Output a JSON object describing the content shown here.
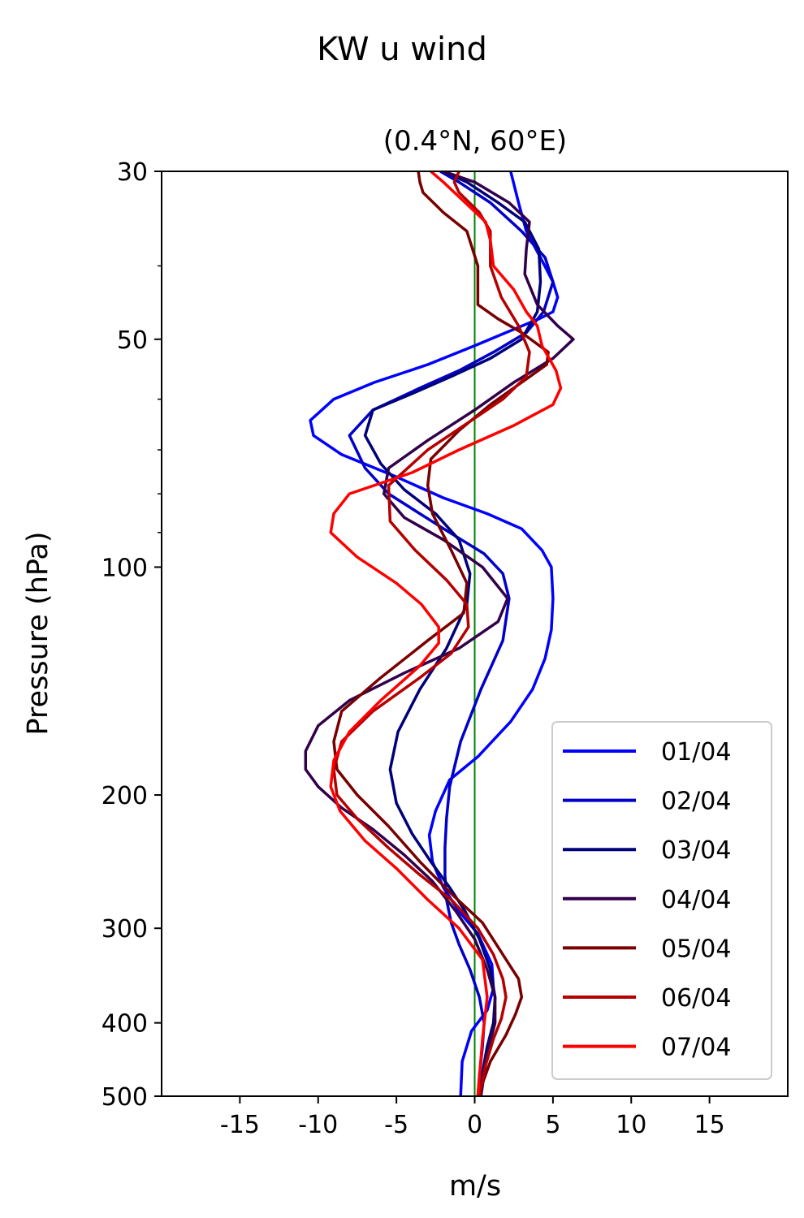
{
  "chart_data": {
    "type": "line",
    "title": "KW u wind",
    "subtitle": "(0.4°N, 60°E)",
    "xlabel": "m/s",
    "ylabel": "Pressure (hPa)",
    "xlim": [
      -20,
      20
    ],
    "ylim": [
      500,
      30
    ],
    "y_scale": "log",
    "x_ticks": [
      -15,
      -10,
      -5,
      0,
      5,
      10,
      15
    ],
    "y_ticks": [
      30,
      50,
      100,
      200,
      300,
      400,
      500
    ],
    "grid": false,
    "legend_position": "lower-right",
    "reference_line": {
      "x": 0,
      "color": "#008000"
    },
    "series": [
      {
        "name": "01/04",
        "color": "#0000ff",
        "x": [
          2.3,
          2.8,
          3.3,
          4.2,
          5.0,
          5.3,
          5.0,
          4.1,
          2.0,
          0.0,
          -3.0,
          -6.4,
          -9.0,
          -10.5,
          -10.3,
          -8.5,
          -5.0,
          -2.0,
          0.8,
          3.0,
          4.3,
          4.9,
          5.0,
          4.9,
          4.5,
          3.7,
          2.3,
          0.2,
          -1.6,
          -2.5,
          -2.9,
          -2.7,
          -2.0,
          -1.0,
          0.2,
          1.1,
          1.2,
          0.8,
          -0.2,
          -0.8,
          -0.9
        ],
        "y": [
          30,
          33,
          36,
          39,
          42,
          44,
          46,
          47,
          49,
          51,
          54,
          57,
          60,
          64,
          67,
          71,
          76,
          81,
          85,
          89,
          95,
          100,
          110,
          121,
          132,
          145,
          160,
          178,
          191,
          210,
          226,
          245,
          265,
          285,
          305,
          335,
          360,
          385,
          410,
          450,
          500
        ]
      },
      {
        "name": "02/04",
        "color": "#0000c8",
        "x": [
          -2.2,
          -1.0,
          1.0,
          3.0,
          4.5,
          5.0,
          4.4,
          3.3,
          1.2,
          -1.0,
          -3.5,
          -6.5,
          -8.0,
          -7.0,
          -5.5,
          -3.5,
          -1.6,
          0.6,
          1.8,
          2.2,
          1.8,
          0.4,
          -0.9,
          -1.6,
          -1.8,
          -1.9,
          -1.9,
          -1.8,
          -1.5,
          -1.0,
          -0.3,
          0.3,
          0.6,
          0.5,
          0.3,
          0.2
        ],
        "y": [
          30,
          31,
          33,
          36,
          39,
          42,
          46,
          49,
          52,
          55,
          58,
          62,
          67,
          74,
          80,
          85,
          90,
          96,
          102,
          110,
          125,
          145,
          170,
          195,
          215,
          235,
          255,
          275,
          295,
          315,
          340,
          370,
          400,
          430,
          470,
          500
        ]
      },
      {
        "name": "03/04",
        "color": "#000078",
        "x": [
          -2.0,
          -0.5,
          1.5,
          3.2,
          4.1,
          4.2,
          4.0,
          3.0,
          1.0,
          -1.5,
          -4.0,
          -6.5,
          -7.0,
          -6.0,
          -4.5,
          -2.5,
          -1.0,
          -0.3,
          -0.5,
          -1.8,
          -3.5,
          -4.9,
          -5.4,
          -5.0,
          -4.0,
          -2.8,
          -1.6,
          -0.6,
          0.3,
          1.0,
          1.3,
          1.2,
          0.8,
          0.5,
          0.3
        ],
        "y": [
          30,
          31,
          33,
          35,
          38,
          42,
          46,
          50,
          53,
          56,
          59,
          62,
          67,
          73,
          79,
          85,
          92,
          102,
          112,
          128,
          145,
          165,
          185,
          205,
          225,
          245,
          265,
          285,
          310,
          340,
          370,
          400,
          430,
          465,
          500
        ]
      },
      {
        "name": "04/04",
        "color": "#32004b",
        "x": [
          -2.0,
          0.0,
          2.2,
          3.5,
          3.3,
          3.2,
          4.0,
          5.3,
          6.3,
          5.0,
          2.5,
          0.0,
          -3.0,
          -5.5,
          -5.8,
          -4.5,
          -2.0,
          0.5,
          2.1,
          1.5,
          -1.0,
          -4.5,
          -8.0,
          -10.0,
          -10.8,
          -10.8,
          -10.0,
          -8.5,
          -6.5,
          -4.5,
          -2.7,
          -1.2,
          0.0,
          0.8,
          1.3,
          1.3,
          0.8,
          0.4
        ],
        "y": [
          30,
          31,
          33,
          35,
          38,
          41,
          45,
          48,
          50,
          53,
          57,
          62,
          68,
          74,
          80,
          86,
          92,
          100,
          110,
          118,
          128,
          138,
          150,
          162,
          175,
          185,
          195,
          208,
          222,
          240,
          260,
          285,
          310,
          340,
          370,
          400,
          440,
          500
        ]
      },
      {
        "name": "05/04",
        "color": "#780000",
        "x": [
          -3.6,
          -3.5,
          -3.3,
          -2.0,
          -0.5,
          0.2,
          0.2,
          0.2,
          1.5,
          3.0,
          4.7,
          4.6,
          3.0,
          1.0,
          -1.0,
          -2.8,
          -3.0,
          -2.7,
          -1.5,
          -0.5,
          -0.7,
          -3.0,
          -6.0,
          -8.5,
          -9.0,
          -8.8,
          -7.5,
          -5.5,
          -3.5,
          -1.5,
          0.5,
          1.8,
          2.8,
          3.0,
          2.6,
          2.0,
          1.0,
          0.2
        ],
        "y": [
          30,
          31,
          32,
          34,
          36,
          40,
          43,
          45,
          47,
          49,
          52,
          54,
          57,
          61,
          66,
          72,
          78,
          85,
          95,
          105,
          115,
          125,
          140,
          155,
          170,
          185,
          200,
          220,
          245,
          270,
          295,
          325,
          350,
          370,
          390,
          415,
          450,
          500
        ]
      },
      {
        "name": "06/04",
        "color": "#b40000",
        "x": [
          -1.0,
          -1.3,
          -1.0,
          0.3,
          1.0,
          1.0,
          1.7,
          2.8,
          3.5,
          3.3,
          1.8,
          -0.2,
          -3.0,
          -5.5,
          -5.4,
          -3.8,
          -1.8,
          -0.5,
          -0.4,
          -1.5,
          -3.5,
          -6.5,
          -8.5,
          -9.0,
          -8.8,
          -7.5,
          -5.5,
          -3.5,
          -1.5,
          0.2,
          1.2,
          1.8,
          2.0,
          1.7,
          1.2,
          0.7,
          0.3
        ],
        "y": [
          30,
          31,
          32,
          34,
          36,
          40,
          44,
          48,
          52,
          56,
          60,
          64,
          70,
          78,
          87,
          95,
          104,
          112,
          120,
          130,
          140,
          155,
          170,
          185,
          200,
          215,
          235,
          255,
          275,
          300,
          325,
          350,
          370,
          395,
          420,
          455,
          500
        ]
      },
      {
        "name": "07/04",
        "color": "#ff0000",
        "x": [
          -2.8,
          -2.0,
          -0.6,
          0.7,
          1.0,
          1.2,
          2.5,
          3.3,
          4.0,
          4.3,
          5.2,
          5.5,
          5.0,
          2.5,
          -1.0,
          -4.0,
          -8.0,
          -9.0,
          -9.2,
          -7.5,
          -5.0,
          -3.4,
          -2.3,
          -2.3,
          -3.5,
          -6.0,
          -8.0,
          -9.0,
          -9.2,
          -8.6,
          -7.0,
          -5.0,
          -3.0,
          -1.0,
          0.5,
          0.8,
          0.5,
          0.2
        ],
        "y": [
          30,
          31,
          33,
          35,
          37,
          40,
          43,
          46,
          48,
          51,
          55,
          58,
          61,
          65,
          70,
          75,
          80,
          85,
          90,
          97,
          105,
          112,
          120,
          126,
          135,
          150,
          165,
          180,
          195,
          210,
          230,
          250,
          275,
          300,
          330,
          370,
          420,
          500
        ]
      }
    ]
  }
}
